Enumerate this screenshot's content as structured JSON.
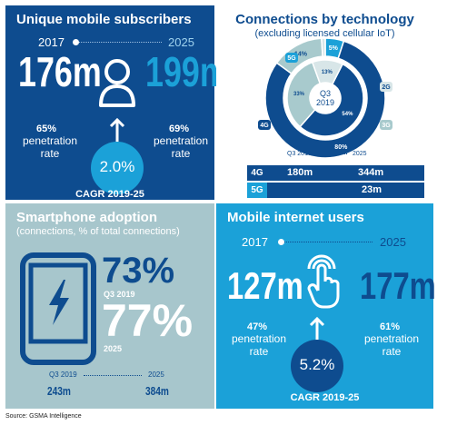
{
  "subscribers": {
    "title": "Unique mobile subscribers",
    "year_start": "2017",
    "year_end": "2025",
    "value_start": "176m",
    "value_end": "199m",
    "pen_start": "65%",
    "pen_end": "69%",
    "pen_label_1": "penetration",
    "pen_label_2": "rate",
    "cagr": "2.0%",
    "cagr_label": "CAGR 2019-25"
  },
  "connections": {
    "title": "Connections by technology",
    "subtitle": "(excluding licensed cellular IoT)",
    "outer_year": "2025",
    "inner_quarter": "Q3",
    "inner_year": "2019",
    "col_q3": "Q3 2019",
    "col_2025": "2025",
    "rows": [
      {
        "tech": "4G",
        "q3": "180m",
        "y2025": "344m"
      },
      {
        "tech": "5G",
        "q3": "",
        "y2025": "23m"
      }
    ],
    "legend": {
      "g5": "5G",
      "g4": "4G",
      "g2": "2G",
      "g3": "3G"
    },
    "colors": {
      "g4": "#0e4c8f",
      "g3": "#a8cacd",
      "g2": "#d8e6e8",
      "g5": "#1ba1d8"
    }
  },
  "chart_data": {
    "type": "pie",
    "title": "Connections by technology",
    "subtitle": "(excluding licensed cellular IoT)",
    "series": [
      {
        "name": "2025",
        "labels": [
          "5G",
          "4G",
          "3G",
          "2G"
        ],
        "values": [
          5,
          80,
          14,
          1
        ],
        "printed": [
          "5%",
          "80%",
          "14%",
          ""
        ]
      },
      {
        "name": "Q3 2019",
        "labels": [
          "4G",
          "3G",
          "2G"
        ],
        "values": [
          54,
          33,
          13
        ],
        "printed": [
          "54%",
          "33%",
          "13%"
        ]
      }
    ]
  },
  "smartphone": {
    "title": "Smartphone adoption",
    "subtitle": "(connections, % of total connections)",
    "pct_q3": "73%",
    "label_q3": "Q3 2019",
    "pct_2025": "77%",
    "label_2025": "2025",
    "col_q3": "Q3 2019",
    "col_2025": "2025",
    "val_q3": "243m",
    "val_2025": "384m"
  },
  "internet": {
    "title": "Mobile internet users",
    "year_start": "2017",
    "year_end": "2025",
    "value_start": "127m",
    "value_end": "177m",
    "pen_start": "47%",
    "pen_end": "61%",
    "pen_label_1": "penetration",
    "pen_label_2": "rate",
    "cagr": "5.2%",
    "cagr_label": "CAGR 2019-25"
  },
  "source": "Source: GSMA Intelligence"
}
